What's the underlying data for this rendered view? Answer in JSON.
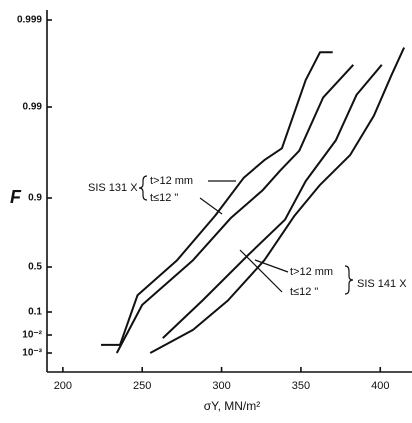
{
  "chart_data": {
    "type": "line",
    "ylabel": "F",
    "xlabel": "σY, MN/m²",
    "xlim": [
      190,
      420
    ],
    "xticks": [
      200,
      250,
      300,
      350,
      400
    ],
    "yscale": "probability",
    "yticks": [
      {
        "value": 0.001,
        "label": "10⁻³"
      },
      {
        "value": 0.01,
        "label": "10⁻²"
      },
      0.1,
      0.5,
      0.9,
      0.99,
      0.999
    ],
    "series": [
      {
        "name": "t>12 mm",
        "color": "#111111",
        "x": [
          224,
          236,
          247,
          272,
          296,
          314,
          327,
          338,
          353,
          362,
          370
        ],
        "values": [
          0.003,
          0.003,
          0.21,
          0.55,
          0.83,
          0.935,
          0.957,
          0.968,
          0.9948,
          0.9975,
          0.9975
        ]
      },
      {
        "name": "t≤12 \"",
        "color": "#111111",
        "x": [
          234,
          250,
          282,
          306,
          326,
          337,
          349,
          364,
          383
        ],
        "values": [
          0.001,
          0.14,
          0.55,
          0.82,
          0.915,
          0.945,
          0.966,
          0.992,
          0.9965
        ]
      },
      {
        "name": "t>12 mm",
        "color": "#111111",
        "x": [
          263,
          288,
          317,
          340,
          353,
          372,
          385,
          401
        ],
        "values": [
          0.007,
          0.17,
          0.59,
          0.81,
          0.93,
          0.974,
          0.9925,
          0.9965
        ]
      },
      {
        "name": "t≤12 \"",
        "color": "#111111",
        "x": [
          255,
          282,
          304,
          327,
          346,
          362,
          381,
          396,
          407,
          415
        ],
        "values": [
          0.001,
          0.018,
          0.17,
          0.55,
          0.83,
          0.924,
          0.962,
          0.987,
          0.9954,
          0.9978
        ]
      }
    ],
    "groups": [
      "SIS 131 X",
      "SIS 141 X"
    ]
  }
}
